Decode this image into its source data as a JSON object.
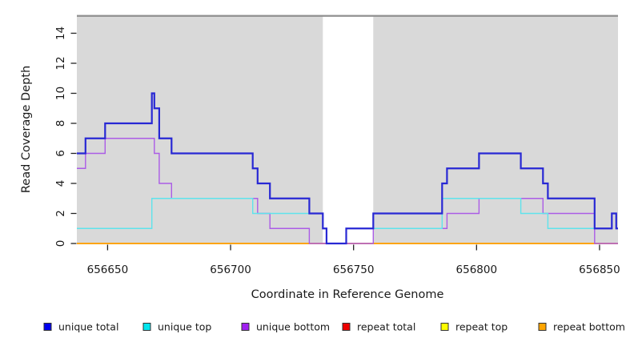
{
  "figure": {
    "xlabel": "Coordinate in Reference Genome",
    "ylabel": "Read Coverage Depth",
    "panel_bg": "#d9d9d9",
    "band_color": "#ffffff",
    "top_rule_color": "#8a8a8a",
    "tick_color": "#222222",
    "text_color": "#1a1a1a"
  },
  "chart_data": {
    "type": "line",
    "step": true,
    "title": "",
    "xlabel": "Coordinate in Reference Genome",
    "ylabel": "Read Coverage Depth",
    "xlim": [
      656637.5,
      656857.5
    ],
    "ylim": [
      0,
      15.3
    ],
    "x_ticks": [
      656650,
      656700,
      656750,
      656800,
      656850
    ],
    "y_ticks": [
      0,
      2,
      4,
      6,
      8,
      10,
      12,
      14
    ],
    "grid": false,
    "highlight_band_x": [
      656737.5,
      656758
    ],
    "legend_position": "bottom",
    "legend": [
      {
        "label": "unique total",
        "color": "#0000EE"
      },
      {
        "label": "unique top",
        "color": "#00E5EE"
      },
      {
        "label": "unique bottom",
        "color": "#A020F0"
      },
      {
        "label": "repeat total",
        "color": "#EE0000"
      },
      {
        "label": "repeat top",
        "color": "#FFFF00"
      },
      {
        "label": "repeat bottom",
        "color": "#FFA500"
      }
    ],
    "series": [
      {
        "name": "repeat total",
        "color": "#ee0000",
        "width": 1.4,
        "points": [
          [
            656637.5,
            0
          ]
        ]
      },
      {
        "name": "repeat top",
        "color": "#ffff00",
        "width": 1.4,
        "points": [
          [
            656637.5,
            0
          ]
        ]
      },
      {
        "name": "repeat bottom",
        "color": "#ff9d00",
        "width": 1.6,
        "points": [
          [
            656637.5,
            0
          ]
        ]
      },
      {
        "name": "unique bottom",
        "color": "#ab5ce6",
        "width": 1.4,
        "points": [
          [
            656637.5,
            5
          ],
          [
            656641,
            6
          ],
          [
            656649,
            7
          ],
          [
            656669,
            6
          ],
          [
            656671,
            4
          ],
          [
            656676,
            3
          ],
          [
            656711,
            2
          ],
          [
            656716,
            1
          ],
          [
            656732,
            0
          ],
          [
            656758,
            1
          ],
          [
            656788,
            2
          ],
          [
            656801,
            3
          ],
          [
            656827,
            2
          ],
          [
            656848,
            0
          ]
        ]
      },
      {
        "name": "unique top",
        "color": "#5fe3ec",
        "width": 1.4,
        "points": [
          [
            656637.5,
            1
          ],
          [
            656668,
            3
          ],
          [
            656709,
            2
          ],
          [
            656737.5,
            1
          ],
          [
            656739,
            0
          ],
          [
            656747,
            1
          ],
          [
            656786,
            3
          ],
          [
            656818,
            2
          ],
          [
            656829,
            1
          ],
          [
            656855,
            2
          ],
          [
            656856.8,
            1
          ]
        ]
      },
      {
        "name": "unique total",
        "color": "#2828d4",
        "width": 2.2,
        "points": [
          [
            656637.5,
            6
          ],
          [
            656641,
            7
          ],
          [
            656649,
            8
          ],
          [
            656668,
            10
          ],
          [
            656669,
            9
          ],
          [
            656671,
            7
          ],
          [
            656676,
            6
          ],
          [
            656709,
            5
          ],
          [
            656711,
            4
          ],
          [
            656716,
            3
          ],
          [
            656732,
            2
          ],
          [
            656737.5,
            1
          ],
          [
            656739,
            0
          ],
          [
            656747,
            1
          ],
          [
            656758,
            2
          ],
          [
            656786,
            4
          ],
          [
            656788,
            5
          ],
          [
            656801,
            6
          ],
          [
            656818,
            5
          ],
          [
            656827,
            4
          ],
          [
            656829,
            3
          ],
          [
            656848,
            1
          ],
          [
            656855,
            2
          ],
          [
            656856.8,
            1
          ]
        ]
      }
    ]
  }
}
